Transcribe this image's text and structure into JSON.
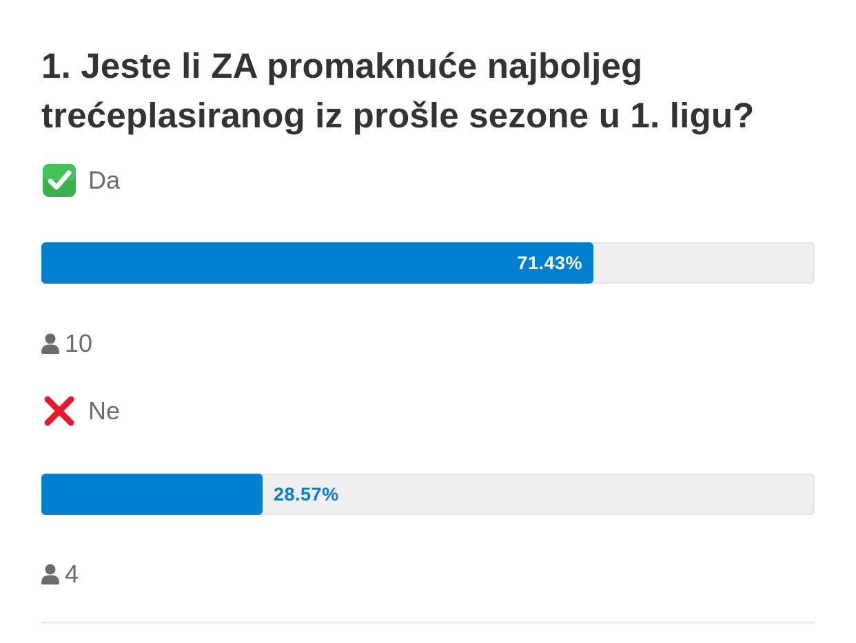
{
  "poll": {
    "question": "1. Jeste li ZA promaknuće najboljeg trećeplasiranog iz prošle sezone u 1. ligu?",
    "colors": {
      "bar_fill": "#0180cf",
      "bar_track": "#efefef",
      "text_primary": "#333333",
      "text_muted": "#6b6b6b"
    },
    "options": [
      {
        "icon": "check-mark-button-icon",
        "label": "Da",
        "percent": 71.43,
        "percent_label": "71.43%",
        "voters": "10"
      },
      {
        "icon": "cross-mark-icon",
        "label": "Ne",
        "percent": 28.57,
        "percent_label": "28.57%",
        "voters": "4"
      }
    ]
  }
}
